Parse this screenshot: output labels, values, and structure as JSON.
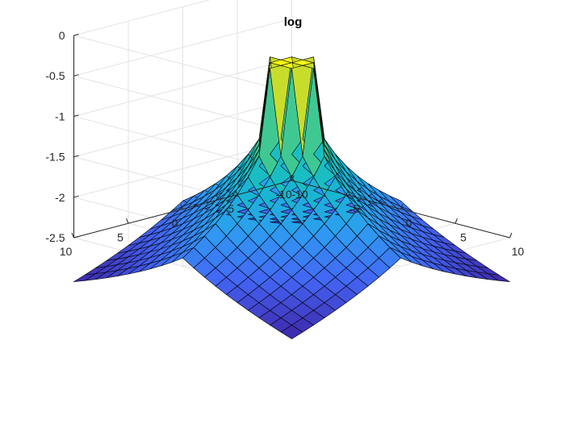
{
  "chart_data": {
    "type": "surface",
    "title": "log",
    "xlabel": "",
    "ylabel": "",
    "zlabel": "",
    "x": [
      -10,
      -9,
      -8,
      -7,
      -6,
      -5,
      -4,
      -3,
      -2,
      -1,
      0,
      1,
      2,
      3,
      4,
      5,
      6,
      7,
      8,
      9,
      10
    ],
    "y": [
      -10,
      -9,
      -8,
      -7,
      -6,
      -5,
      -4,
      -3,
      -2,
      -1,
      0,
      1,
      2,
      3,
      4,
      5,
      6,
      7,
      8,
      9,
      10
    ],
    "z_function": "log(1/(|x|+|y|+1)), terraced",
    "xlim": [
      -10,
      10
    ],
    "ylim": [
      -10,
      10
    ],
    "zlim": [
      -2.5,
      0
    ],
    "x_ticks": [
      -10,
      -5,
      0,
      5,
      10
    ],
    "y_ticks": [
      -10,
      -5,
      0,
      5,
      10
    ],
    "z_ticks": [
      0,
      -0.5,
      -1,
      -1.5,
      -2,
      -2.5
    ],
    "x_tick_labels": [
      "-10",
      "-5",
      "0",
      "5",
      "10"
    ],
    "y_tick_labels": [
      "-10",
      "-5",
      "0",
      "5",
      "10"
    ],
    "z_tick_labels": [
      "0",
      "-0.5",
      "-1",
      "-1.5",
      "-2",
      "-2.5"
    ],
    "colormap": "parula",
    "colormap_stops": [
      "#3e26a8",
      "#4465f5",
      "#2d9ef2",
      "#14bbcb",
      "#31c8a0",
      "#a4c83b",
      "#f9fb15"
    ],
    "grid": true,
    "box": false
  }
}
